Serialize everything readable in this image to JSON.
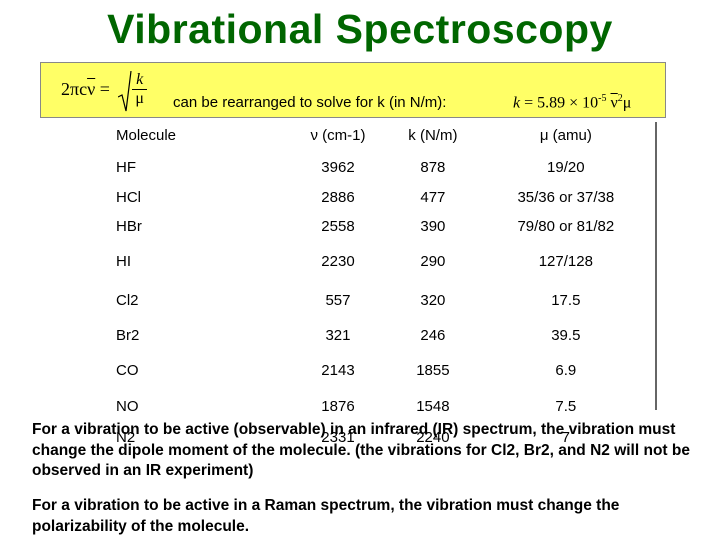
{
  "title": "Vibrational Spectroscopy",
  "formula": {
    "lhs": "2πc",
    "nu_symbol": "ν",
    "equals": "=",
    "sqrt_num": "k",
    "sqrt_den": "μ",
    "middle_text": "can be rearranged to solve for k (in N/m):",
    "rhs_k": "k",
    "rhs_equals": "=",
    "rhs_coeff": "5.89 × 10",
    "rhs_exp": "-5",
    "rhs_nu": "ν",
    "rhs_nu_exp": "2",
    "rhs_mu": "μ"
  },
  "table": {
    "headers": [
      "Molecule",
      "ν (cm-1)",
      "k (N/m)",
      "μ (amu)"
    ],
    "rows": [
      [
        "HF",
        "3962",
        "878",
        "19/20"
      ],
      [
        "HCl",
        "2886",
        "477",
        "35/36 or 37/38"
      ],
      [
        "HBr",
        "2558",
        "390",
        "79/80 or 81/82"
      ],
      [
        "HI",
        "2230",
        "290",
        "127/128"
      ],
      [
        "Cl2",
        "557",
        "320",
        "17.5"
      ],
      [
        "Br2",
        "321",
        "246",
        "39.5"
      ],
      [
        "CO",
        "2143",
        "1855",
        "6.9"
      ],
      [
        "NO",
        "1876",
        "1548",
        "7.5"
      ],
      [
        "N2",
        "2331",
        "2240",
        "7"
      ]
    ]
  },
  "notes": {
    "ir": "For a vibration to be active (observable) in an infrared (IR) spectrum, the vibration must change the dipole moment of the molecule. (the vibrations for Cl2, Br2, and N2 will not be observed in an IR experiment)",
    "raman": "For a vibration to be active in a Raman spectrum, the vibration must change the polarizability of the molecule."
  },
  "colors": {
    "title": "#006600",
    "formula_bg": "#ffff66"
  }
}
